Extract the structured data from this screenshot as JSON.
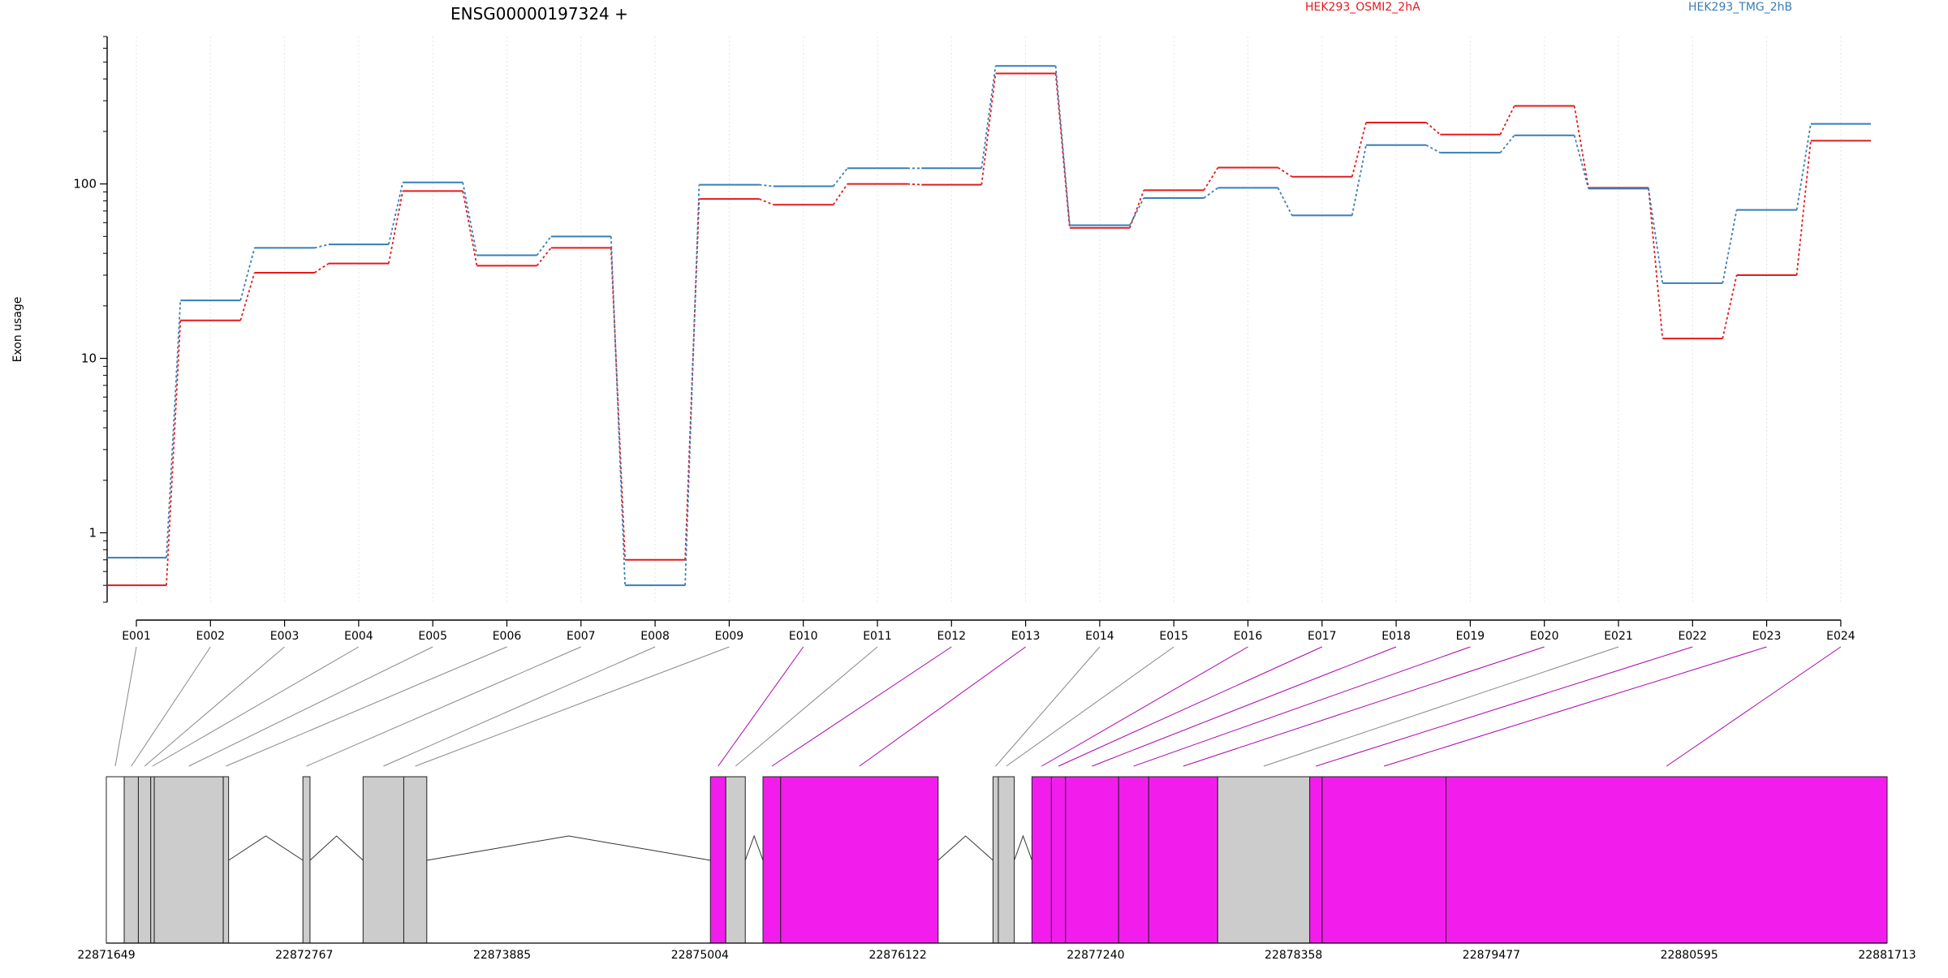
{
  "chart_data": {
    "type": "line",
    "title": "ENSG00000197324 +",
    "ylabel": "Exon usage",
    "yscale": "log",
    "ylim": [
      0.4,
      700
    ],
    "yticks": [
      1,
      10,
      100
    ],
    "ytick_labels": [
      "1",
      "10",
      "100"
    ],
    "grid": "vertical dotted, one per exon",
    "legend": "top-right",
    "categories": [
      "E001",
      "E002",
      "E003",
      "E004",
      "E005",
      "E006",
      "E007",
      "E008",
      "E009",
      "E010",
      "E011",
      "E012",
      "E013",
      "E014",
      "E015",
      "E016",
      "E017",
      "E018",
      "E019",
      "E020",
      "E021",
      "E022",
      "E023",
      "E024"
    ],
    "series": [
      {
        "name": "HEK293_OSMI2_2hA",
        "color": "#e41a1c",
        "values": [
          0.5,
          16.5,
          31,
          35,
          91,
          34,
          43,
          0.7,
          82,
          76,
          100,
          99,
          430,
          56,
          92,
          124,
          110,
          225,
          192,
          280,
          95,
          13,
          30,
          177
        ]
      },
      {
        "name": "HEK293_TMG_2hB",
        "color": "#377eb8",
        "values": [
          0.72,
          21.5,
          43,
          45,
          102,
          39,
          50,
          0.5,
          99,
          97,
          123,
          123,
          475,
          58,
          83,
          95,
          66,
          167,
          151,
          190,
          94,
          27,
          71,
          221
        ]
      }
    ],
    "gene_model": {
      "coordinate_labels": [
        "22871649",
        "22872767",
        "22873885",
        "22875004",
        "22876122",
        "22877240",
        "22878358",
        "22879477",
        "22880595",
        "22881713"
      ],
      "genomic_range": [
        22871649,
        22881713
      ],
      "exon_colors": {
        "normal": "#cccccc",
        "highlighted": "#f21ded"
      },
      "exons": [
        {
          "id": "E001",
          "start": 22871649,
          "end": 22871750,
          "hl": false,
          "white": true
        },
        {
          "id": "E002",
          "start": 22871750,
          "end": 22871830,
          "hl": false
        },
        {
          "id": "E003",
          "start": 22871830,
          "end": 22871900,
          "hl": false
        },
        {
          "id": "E004",
          "start": 22871900,
          "end": 22871920,
          "hl": false
        },
        {
          "id": "E005",
          "start": 22871920,
          "end": 22872310,
          "hl": false
        },
        {
          "id": "E006",
          "start": 22872310,
          "end": 22872340,
          "hl": false
        },
        {
          "id": "E007",
          "start": 22872760,
          "end": 22872800,
          "hl": false
        },
        {
          "id": "E008",
          "start": 22873100,
          "end": 22873330,
          "hl": false
        },
        {
          "id": "E009",
          "start": 22873330,
          "end": 22873460,
          "hl": false
        },
        {
          "id": "E010",
          "start": 22875063,
          "end": 22875150,
          "hl": true
        },
        {
          "id": "E011",
          "start": 22875150,
          "end": 22875260,
          "hl": false
        },
        {
          "id": "E012",
          "start": 22875360,
          "end": 22875460,
          "hl": true
        },
        {
          "id": "E013",
          "start": 22875460,
          "end": 22876350,
          "hl": true
        },
        {
          "id": "E014",
          "start": 22876660,
          "end": 22876690,
          "hl": false
        },
        {
          "id": "E015",
          "start": 22876690,
          "end": 22876780,
          "hl": false
        },
        {
          "id": "E016",
          "start": 22876880,
          "end": 22876990,
          "hl": true
        },
        {
          "id": "E017",
          "start": 22876990,
          "end": 22877070,
          "hl": true
        },
        {
          "id": "E018",
          "start": 22877070,
          "end": 22877370,
          "hl": true
        },
        {
          "id": "E019",
          "start": 22877370,
          "end": 22877540,
          "hl": true
        },
        {
          "id": "E020",
          "start": 22877540,
          "end": 22877930,
          "hl": true
        },
        {
          "id": "E021",
          "start": 22877930,
          "end": 22878450,
          "hl": false
        },
        {
          "id": "E022",
          "start": 22878450,
          "end": 22878520,
          "hl": true
        },
        {
          "id": "E023",
          "start": 22878520,
          "end": 22879220,
          "hl": true
        },
        {
          "id": "E024",
          "start": 22879220,
          "end": 22881713,
          "hl": true
        }
      ],
      "introns": [
        [
          22872340,
          22872760
        ],
        [
          22872800,
          22873100
        ],
        [
          22873460,
          22875063
        ],
        [
          22875260,
          22875360
        ],
        [
          22876350,
          22876660
        ],
        [
          22876780,
          22876880
        ]
      ]
    }
  }
}
